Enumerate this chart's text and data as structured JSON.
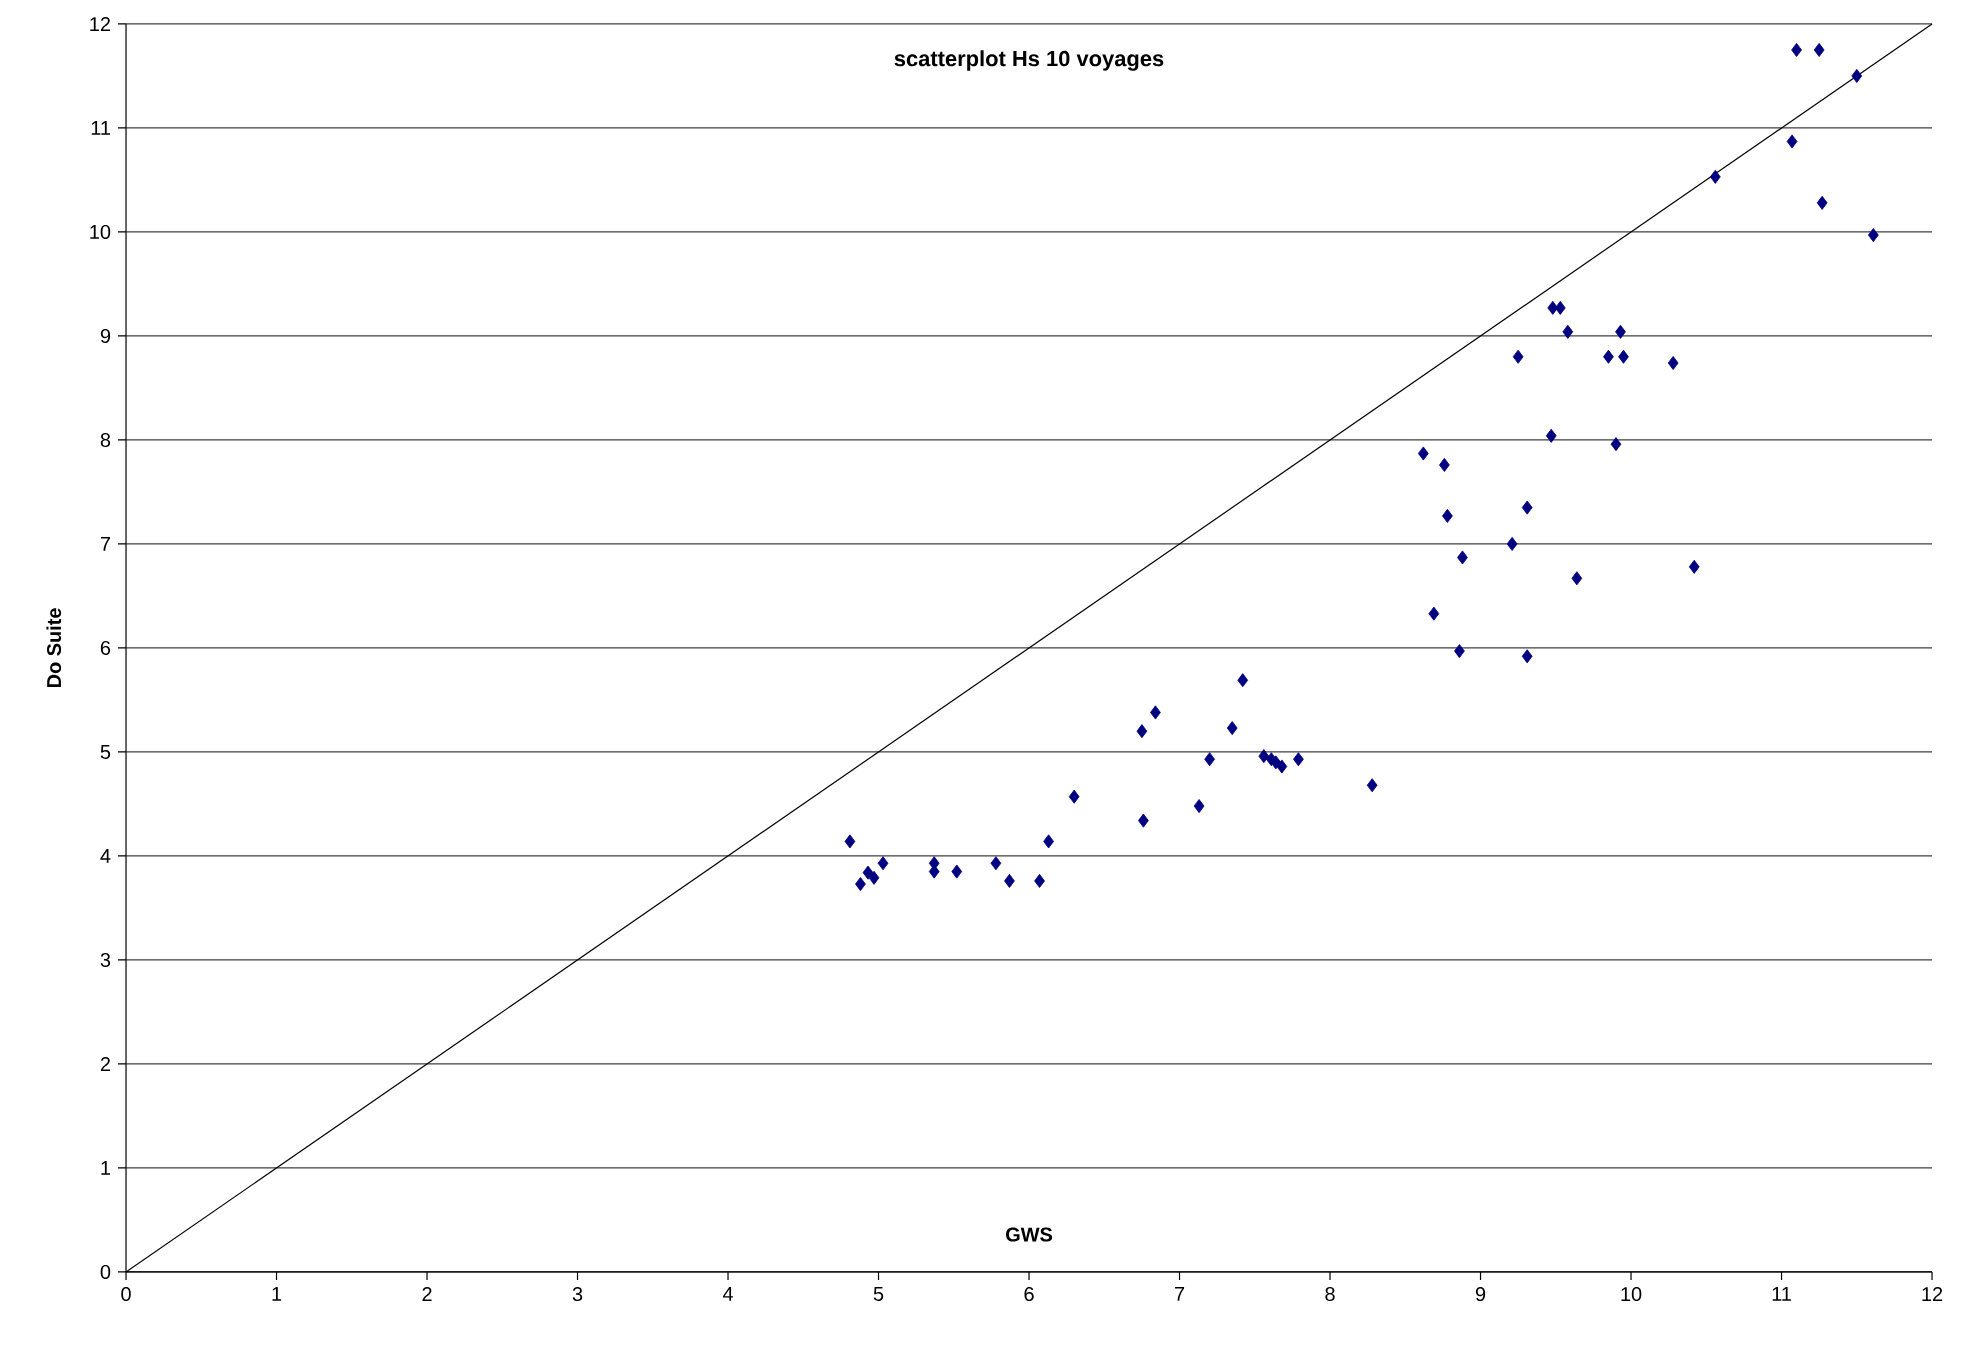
{
  "chart_data": {
    "type": "scatter",
    "title": "scatterplot  Hs 10 voyages",
    "xlabel": "GWS",
    "ylabel": "Do Suite",
    "xlim": [
      0,
      12
    ],
    "ylim": [
      0,
      12
    ],
    "xticks": [
      0,
      1,
      2,
      3,
      4,
      5,
      6,
      7,
      8,
      9,
      10,
      11,
      12
    ],
    "yticks": [
      0,
      1,
      2,
      3,
      4,
      5,
      6,
      7,
      8,
      9,
      10,
      11,
      12
    ],
    "grid": "y",
    "marker": "diamond",
    "series": [
      {
        "color": "#000080",
        "x": [
          4.81,
          4.88,
          4.93,
          4.97,
          5.03,
          5.37,
          5.37,
          5.52,
          5.78,
          5.87,
          6.07,
          6.13,
          6.3,
          6.75,
          6.76,
          6.84,
          7.13,
          7.2,
          7.35,
          7.42,
          7.56,
          7.61,
          7.64,
          7.68,
          7.79,
          8.28,
          8.62,
          8.69,
          8.76,
          8.78,
          8.86,
          8.88,
          9.21,
          9.25,
          9.31,
          9.31,
          9.47,
          9.48,
          9.53,
          9.58,
          9.64,
          9.85,
          9.9,
          9.93,
          9.95,
          10.28,
          10.42,
          10.56,
          11.07,
          11.1,
          11.25,
          11.27,
          11.5,
          11.61
        ],
        "values": [
          4.14,
          3.73,
          3.84,
          3.79,
          3.93,
          3.93,
          3.85,
          3.85,
          3.93,
          3.76,
          3.76,
          4.14,
          4.57,
          5.2,
          4.34,
          5.38,
          4.48,
          4.93,
          5.23,
          5.69,
          4.96,
          4.93,
          4.9,
          4.86,
          4.93,
          4.68,
          7.87,
          6.33,
          7.76,
          7.27,
          5.97,
          6.87,
          7.0,
          8.8,
          5.92,
          7.35,
          8.04,
          9.27,
          9.27,
          9.04,
          6.67,
          8.8,
          7.96,
          9.04,
          8.8,
          8.74,
          6.78,
          10.53,
          10.87,
          11.75,
          11.75,
          10.28,
          11.5,
          9.97
        ]
      },
      {
        "type": "line",
        "color": "#000000",
        "marker": "none",
        "line_style": "solid",
        "x": [
          0,
          12
        ],
        "values": [
          0,
          12
        ]
      }
    ]
  }
}
